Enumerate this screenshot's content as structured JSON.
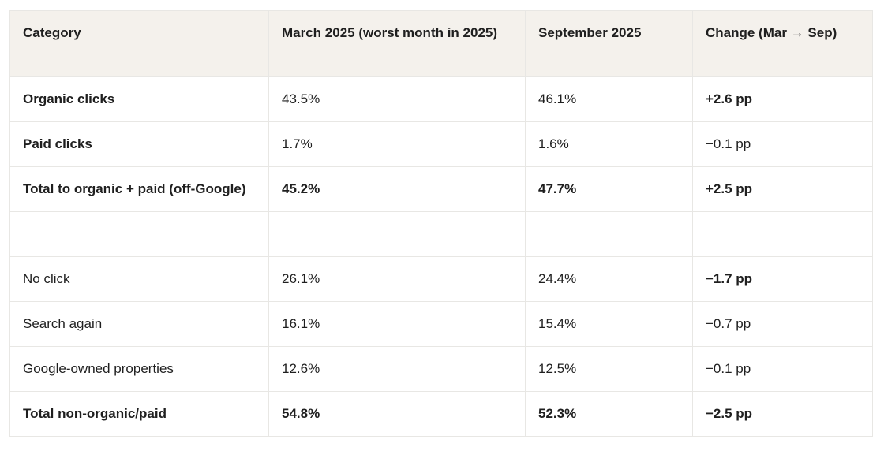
{
  "colors": {
    "header_bg": "#f4f1ec",
    "border": "#e8e7e4",
    "text": "#1f1f1f",
    "page_bg": "#ffffff"
  },
  "header": {
    "c0": "Category",
    "c1": "March 2025 (worst month in 2025)",
    "c2": "September 2025",
    "c3": "Change (Mar → Sep)"
  },
  "rows": {
    "organic": {
      "c0": "Organic clicks",
      "c1": "43.5%",
      "c2": "46.1%",
      "c3": "+2.6 pp"
    },
    "paid": {
      "c0": "Paid clicks",
      "c1": "1.7%",
      "c2": "1.6%",
      "c3": "−0.1 pp"
    },
    "total_organic_paid": {
      "c0": "Total to organic + paid (off-Google)",
      "c1": "45.2%",
      "c2": "47.7%",
      "c3": "+2.5 pp"
    },
    "spacer": {
      "c0": "",
      "c1": "",
      "c2": "",
      "c3": ""
    },
    "no_click": {
      "c0": "No click",
      "c1": "26.1%",
      "c2": "24.4%",
      "c3": "−1.7 pp"
    },
    "search_again": {
      "c0": "Search again",
      "c1": "16.1%",
      "c2": "15.4%",
      "c3": "−0.7 pp"
    },
    "google_owned": {
      "c0": "Google-owned properties",
      "c1": "12.6%",
      "c2": "12.5%",
      "c3": "−0.1 pp"
    },
    "total_non_organic": {
      "c0": "Total non-organic/paid",
      "c1": "54.8%",
      "c2": "52.3%",
      "c3": "−2.5 pp"
    }
  },
  "chart_data": {
    "type": "table",
    "title": "",
    "columns": [
      "Category",
      "March 2025 (worst month in 2025)",
      "September 2025",
      "Change (Mar → Sep)"
    ],
    "rows": [
      [
        "Organic clicks",
        "43.5%",
        "46.1%",
        "+2.6 pp"
      ],
      [
        "Paid clicks",
        "1.7%",
        "1.6%",
        "−0.1 pp"
      ],
      [
        "Total to organic + paid (off-Google)",
        "45.2%",
        "47.7%",
        "+2.5 pp"
      ],
      [
        "",
        "",
        "",
        ""
      ],
      [
        "No click",
        "26.1%",
        "24.4%",
        "−1.7 pp"
      ],
      [
        "Search again",
        "16.1%",
        "15.4%",
        "−0.7 pp"
      ],
      [
        "Google-owned properties",
        "12.6%",
        "12.5%",
        "−0.1 pp"
      ],
      [
        "Total non-organic/paid",
        "54.8%",
        "52.3%",
        "−2.5 pp"
      ]
    ],
    "numeric_values": {
      "march_2025": {
        "organic_clicks": 43.5,
        "paid_clicks": 1.7,
        "total_organic_plus_paid_off_google": 45.2,
        "no_click": 26.1,
        "search_again": 16.1,
        "google_owned_properties": 12.6,
        "total_non_organic_paid": 54.8
      },
      "september_2025": {
        "organic_clicks": 46.1,
        "paid_clicks": 1.6,
        "total_organic_plus_paid_off_google": 47.7,
        "no_click": 24.4,
        "search_again": 15.4,
        "google_owned_properties": 12.5,
        "total_non_organic_paid": 52.3
      },
      "change_pp": {
        "organic_clicks": 2.6,
        "paid_clicks": -0.1,
        "total_organic_plus_paid_off_google": 2.5,
        "no_click": -1.7,
        "search_again": -0.7,
        "google_owned_properties": -0.1,
        "total_non_organic_paid": -2.5
      }
    }
  }
}
